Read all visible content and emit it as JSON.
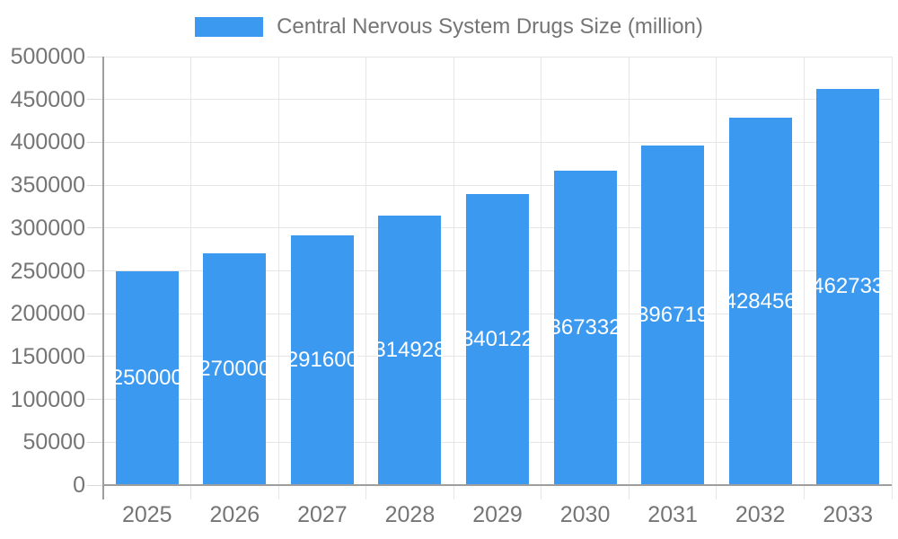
{
  "legend": {
    "label": "Central Nervous System Drugs Size (million)"
  },
  "colors": {
    "bar": "#3C99F0",
    "grid": "#E6E6E6",
    "tick": "#D9D9D9",
    "axis": "#9E9E9E",
    "label_text": "#757575",
    "value_text": "#FFFFFF",
    "background": "#FFFFFF"
  },
  "chart_data": {
    "type": "bar",
    "title": "Central Nervous System Drugs Size (million)",
    "series_name": "Central Nervous System Drugs Size (million)",
    "categories": [
      "2025",
      "2026",
      "2027",
      "2028",
      "2029",
      "2030",
      "2031",
      "2032",
      "2033"
    ],
    "values": [
      250000,
      270000,
      291600,
      314928,
      340122,
      367332,
      396719,
      428456,
      462733
    ],
    "bar_labels": [
      250000,
      270000,
      291600,
      314928,
      340122,
      367332,
      396719,
      428456,
      462733
    ],
    "xlabel": "",
    "ylabel": "",
    "ylim": [
      0,
      500000
    ],
    "ytick_step": 50000,
    "ytick_labels": [
      "0",
      "50000",
      "100000",
      "150000",
      "200000",
      "250000",
      "300000",
      "350000",
      "400000",
      "450000",
      "500000"
    ],
    "grid": true,
    "legend_position": "top"
  }
}
